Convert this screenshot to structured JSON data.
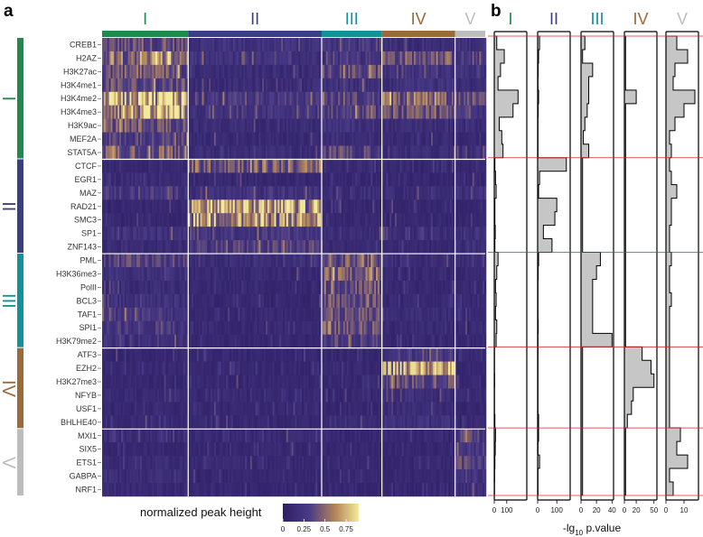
{
  "figure": {
    "panel_a_letter": "a",
    "panel_b_letter": "b"
  },
  "clusters": [
    {
      "label": "I",
      "color": "#1f8a4c",
      "start": 0,
      "end": 100
    },
    {
      "label": "II",
      "color": "#3a3f84",
      "start": 100,
      "end": 255
    },
    {
      "label": "III",
      "color": "#11919a",
      "start": 255,
      "end": 325
    },
    {
      "label": "IV",
      "color": "#9a6a37",
      "start": 325,
      "end": 410
    },
    {
      "label": "V",
      "color": "#bdbdbd",
      "start": 410,
      "end": 445
    }
  ],
  "heatmap_colors": {
    "low": "#2e1f66",
    "mid": "#4a3b87",
    "high_mid": "#b7875a",
    "high": "#f3eb9c"
  },
  "chart_data": [
    {
      "type": "heatmap",
      "panel": "a",
      "title": "",
      "rows": [
        "CREB1",
        "H2AZ",
        "H3K27ac",
        "H3K4me1",
        "H3K4me2",
        "H3K4me3",
        "H3K9ac",
        "MEF2A",
        "STAT5A",
        "CTCF",
        "EGR1",
        "MAZ",
        "RAD21",
        "SMC3",
        "SP1",
        "ZNF143",
        "PML",
        "H3K36me3",
        "PolII",
        "BCL3",
        "TAF1",
        "SPI1",
        "H3K79me2",
        "ATF3",
        "EZH2",
        "H3K27me3",
        "NFYB",
        "USF1",
        "BHLHE40",
        "MXI1",
        "SIX5",
        "ETS1",
        "GABPA",
        "NRF1"
      ],
      "row_groups": [
        {
          "label": "I",
          "start": 0,
          "end": 9
        },
        {
          "label": "II",
          "start": 9,
          "end": 16
        },
        {
          "label": "III",
          "start": 16,
          "end": 23
        },
        {
          "label": "IV",
          "start": 23,
          "end": 29
        },
        {
          "label": "V",
          "start": 29,
          "end": 34
        }
      ],
      "column_clusters": [
        "I",
        "II",
        "III",
        "IV",
        "V"
      ],
      "row_intensity_by_cluster": [
        [
          0.35,
          0.2,
          0.25,
          0.15,
          0.2
        ],
        [
          0.55,
          0.2,
          0.25,
          0.4,
          0.25
        ],
        [
          0.4,
          0.15,
          0.35,
          0.2,
          0.2
        ],
        [
          0.35,
          0.15,
          0.2,
          0.2,
          0.15
        ],
        [
          0.8,
          0.25,
          0.3,
          0.45,
          0.35
        ],
        [
          0.65,
          0.2,
          0.3,
          0.35,
          0.3
        ],
        [
          0.4,
          0.15,
          0.2,
          0.15,
          0.15
        ],
        [
          0.3,
          0.12,
          0.15,
          0.12,
          0.12
        ],
        [
          0.45,
          0.15,
          0.3,
          0.15,
          0.2
        ],
        [
          0.1,
          0.45,
          0.12,
          0.1,
          0.1
        ],
        [
          0.15,
          0.1,
          0.1,
          0.1,
          0.12
        ],
        [
          0.25,
          0.2,
          0.15,
          0.15,
          0.2
        ],
        [
          0.1,
          0.65,
          0.1,
          0.1,
          0.1
        ],
        [
          0.1,
          0.6,
          0.1,
          0.1,
          0.1
        ],
        [
          0.2,
          0.25,
          0.15,
          0.15,
          0.2
        ],
        [
          0.15,
          0.3,
          0.12,
          0.1,
          0.15
        ],
        [
          0.3,
          0.15,
          0.4,
          0.15,
          0.15
        ],
        [
          0.2,
          0.12,
          0.45,
          0.12,
          0.12
        ],
        [
          0.15,
          0.1,
          0.4,
          0.1,
          0.1
        ],
        [
          0.2,
          0.1,
          0.35,
          0.12,
          0.12
        ],
        [
          0.25,
          0.12,
          0.35,
          0.15,
          0.15
        ],
        [
          0.25,
          0.12,
          0.4,
          0.12,
          0.12
        ],
        [
          0.2,
          0.1,
          0.3,
          0.1,
          0.1
        ],
        [
          0.1,
          0.1,
          0.1,
          0.25,
          0.1
        ],
        [
          0.1,
          0.1,
          0.1,
          0.7,
          0.1
        ],
        [
          0.1,
          0.1,
          0.12,
          0.35,
          0.1
        ],
        [
          0.12,
          0.12,
          0.1,
          0.15,
          0.12
        ],
        [
          0.1,
          0.1,
          0.1,
          0.15,
          0.1
        ],
        [
          0.12,
          0.1,
          0.12,
          0.2,
          0.12
        ],
        [
          0.15,
          0.12,
          0.1,
          0.12,
          0.3
        ],
        [
          0.1,
          0.1,
          0.1,
          0.1,
          0.25
        ],
        [
          0.15,
          0.12,
          0.1,
          0.1,
          0.3
        ],
        [
          0.15,
          0.1,
          0.1,
          0.1,
          0.22
        ],
        [
          0.12,
          0.1,
          0.1,
          0.1,
          0.18
        ]
      ],
      "legend": {
        "title": "normalized peak height",
        "ticks": [
          "0",
          "0.25",
          "0.5",
          "0.75"
        ],
        "tick_values": [
          0,
          0.25,
          0.5,
          0.75
        ],
        "range": [
          0,
          0.9
        ]
      }
    },
    {
      "type": "bar",
      "panel": "b",
      "orientation": "horizontal",
      "categories": [
        "CREB1",
        "H2AZ",
        "H3K27ac",
        "H3K4me1",
        "H3K4me2",
        "H3K4me3",
        "H3K9ac",
        "MEF2A",
        "STAT5A",
        "CTCF",
        "EGR1",
        "MAZ",
        "RAD21",
        "SMC3",
        "SP1",
        "ZNF143",
        "PML",
        "H3K36me3",
        "PolII",
        "BCL3",
        "TAF1",
        "SPI1",
        "H3K79me2",
        "ATF3",
        "EZH2",
        "H3K27me3",
        "NFYB",
        "USF1",
        "BHLHE40",
        "MXI1",
        "SIX5",
        "ETS1",
        "GABPA",
        "NRF1"
      ],
      "xlabel": "-lg10 p.value",
      "xlabel_prefix": "-lg",
      "xlabel_sub": "10",
      "xlabel_suffix": " p.value",
      "series": [
        {
          "name": "I",
          "xlim": [
            0,
            260
          ],
          "ticks": [
            "0",
            "100"
          ],
          "tick_values": [
            0,
            100
          ],
          "values": [
            20,
            80,
            50,
            30,
            190,
            150,
            40,
            60,
            70,
            5,
            10,
            15,
            5,
            5,
            8,
            5,
            30,
            20,
            10,
            15,
            10,
            20,
            15,
            2,
            2,
            3,
            2,
            2,
            5,
            10,
            8,
            5,
            3,
            2
          ]
        },
        {
          "name": "II",
          "xlim": [
            0,
            170
          ],
          "ticks": [
            "0",
            "100"
          ],
          "tick_values": [
            0,
            100
          ],
          "values": [
            10,
            5,
            3,
            2,
            5,
            3,
            2,
            2,
            2,
            150,
            10,
            5,
            100,
            90,
            30,
            75,
            5,
            3,
            2,
            2,
            2,
            3,
            2,
            2,
            2,
            2,
            2,
            2,
            5,
            5,
            2,
            10,
            2,
            2
          ]
        },
        {
          "name": "III",
          "xlim": [
            0,
            42
          ],
          "ticks": [
            "0",
            "20",
            "40"
          ],
          "tick_values": [
            0,
            20,
            40
          ],
          "values": [
            5,
            2,
            15,
            10,
            10,
            8,
            5,
            3,
            10,
            2,
            2,
            2,
            2,
            2,
            2,
            2,
            25,
            20,
            15,
            15,
            15,
            15,
            40,
            2,
            2,
            2,
            2,
            2,
            2,
            2,
            2,
            2,
            2,
            2
          ]
        },
        {
          "name": "IV",
          "xlim": [
            0,
            55
          ],
          "ticks": [
            "0",
            "20",
            "50"
          ],
          "tick_values": [
            0,
            20,
            50
          ],
          "values": [
            2,
            2,
            2,
            2,
            20,
            2,
            2,
            2,
            2,
            2,
            2,
            2,
            2,
            2,
            2,
            2,
            2,
            2,
            2,
            2,
            2,
            2,
            2,
            30,
            45,
            50,
            15,
            12,
            5,
            2,
            2,
            2,
            2,
            2
          ]
        },
        {
          "name": "V",
          "xlim": [
            0,
            18
          ],
          "ticks": [
            "0",
            "10"
          ],
          "tick_values": [
            0,
            10
          ],
          "values": [
            6,
            12,
            5,
            4,
            16,
            10,
            5,
            2,
            3,
            2,
            3,
            6,
            3,
            3,
            2,
            2,
            3,
            2,
            2,
            3,
            2,
            2,
            2,
            2,
            2,
            2,
            2,
            2,
            2,
            8,
            6,
            12,
            2,
            4
          ]
        }
      ]
    }
  ]
}
